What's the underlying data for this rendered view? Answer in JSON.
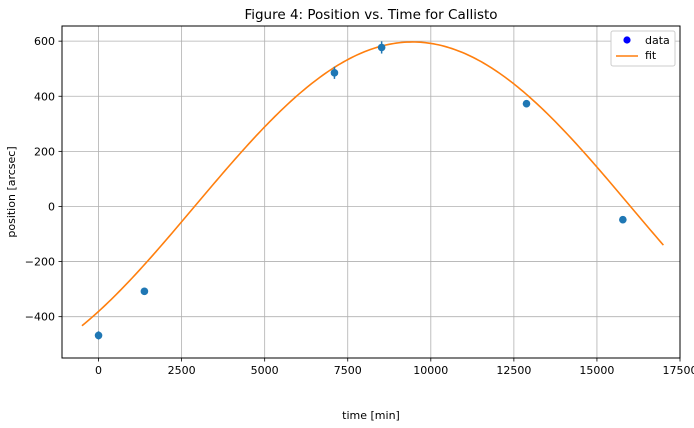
{
  "chart_data": {
    "type": "scatter",
    "title": "Figure 4: Position vs. Time for Callisto",
    "xlabel": "time [min]",
    "ylabel": "position [arcsec]",
    "xlim": [
      -1100,
      17500
    ],
    "ylim": [
      -550,
      655
    ],
    "xticks": [
      0,
      2500,
      5000,
      7500,
      10000,
      12500,
      15000,
      17500
    ],
    "yticks": [
      -400,
      -200,
      0,
      200,
      400,
      600
    ],
    "grid": true,
    "legend_position": "top-right",
    "series": [
      {
        "name": "data",
        "kind": "points",
        "color": "#1f77b4",
        "legend_color": "#0000ff",
        "points": [
          {
            "x": 0,
            "y": -468,
            "err": 15
          },
          {
            "x": 1380,
            "y": -308,
            "err": 8
          },
          {
            "x": 7100,
            "y": 485,
            "err": 22
          },
          {
            "x": 8520,
            "y": 577,
            "err": 22
          },
          {
            "x": 12880,
            "y": 373,
            "err": 13
          },
          {
            "x": 15780,
            "y": -48,
            "err": 8
          }
        ]
      },
      {
        "name": "fit",
        "kind": "line",
        "color": "#ff7f0e",
        "model": {
          "amplitude": 597,
          "period": 26240,
          "peak_x": 9450,
          "x_start": -500,
          "x_end": 17000
        }
      }
    ]
  }
}
